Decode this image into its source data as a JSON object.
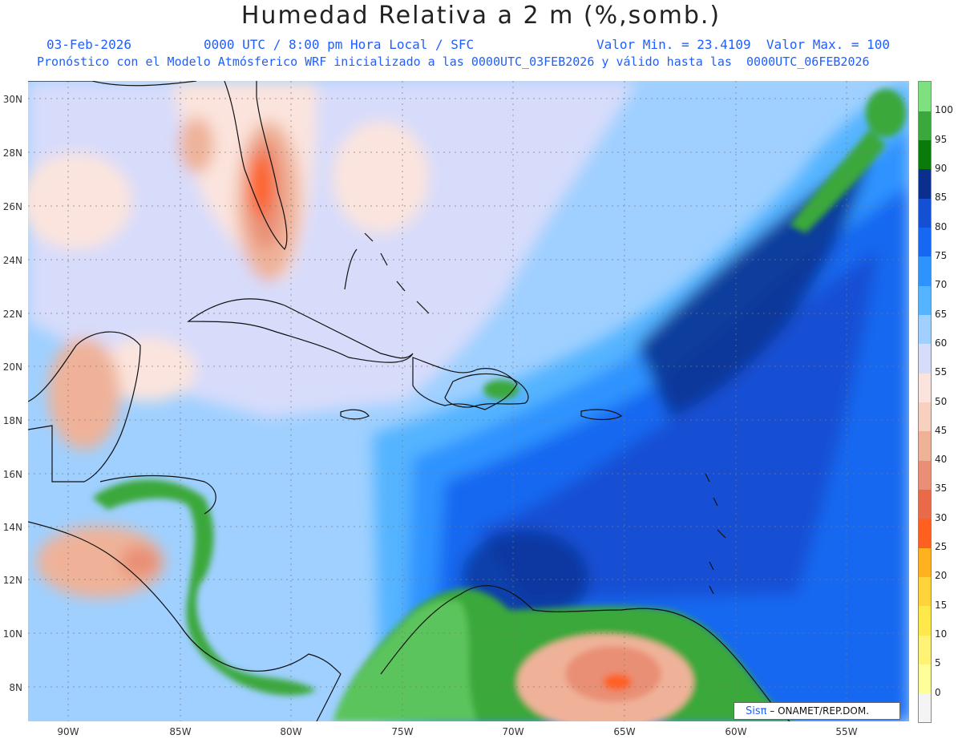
{
  "title": "Humedad Relativa a 2 m (%,somb.)",
  "header": {
    "date": "03-Feb-2026",
    "time": "0000 UTC / 8:00 pm Hora Local / SFC",
    "minmax": "Valor Min. = 23.4109  Valor Max. = 100",
    "model_line": "Pronóstico con el Modelo Atmósferico WRF inicializado a las 0000UTC_03FEB2026 y válido hasta las  0000UTC_06FEB2026"
  },
  "axes": {
    "lat_labels": [
      "30N",
      "28N",
      "26N",
      "24N",
      "22N",
      "20N",
      "18N",
      "16N",
      "14N",
      "12N",
      "10N",
      "8N"
    ],
    "lon_labels": [
      "90W",
      "85W",
      "80W",
      "75W",
      "70W",
      "65W",
      "60W",
      "55W"
    ]
  },
  "colorbar": {
    "labels": [
      "100",
      "95",
      "90",
      "85",
      "80",
      "75",
      "70",
      "65",
      "60",
      "55",
      "50",
      "45",
      "40",
      "35",
      "30",
      "25",
      "20",
      "15",
      "10",
      "5",
      "0"
    ],
    "colors": [
      "#f4f4f4",
      "#ffff99",
      "#fff275",
      "#ffe94a",
      "#ffd43b",
      "#ffb21f",
      "#ff6020",
      "#e86a48",
      "#e98f75",
      "#efb299",
      "#f7d0c0",
      "#fbe4dd",
      "#d7dcfb",
      "#9fd0ff",
      "#55b4ff",
      "#2d93ff",
      "#1768f0",
      "#1450d4",
      "#0a2f8c",
      "#0a7a0a",
      "#3aa83a",
      "#7ee07e"
    ]
  },
  "credit": {
    "sis": "Sisπ",
    "text": "– ONAMET/REP.DOM."
  }
}
